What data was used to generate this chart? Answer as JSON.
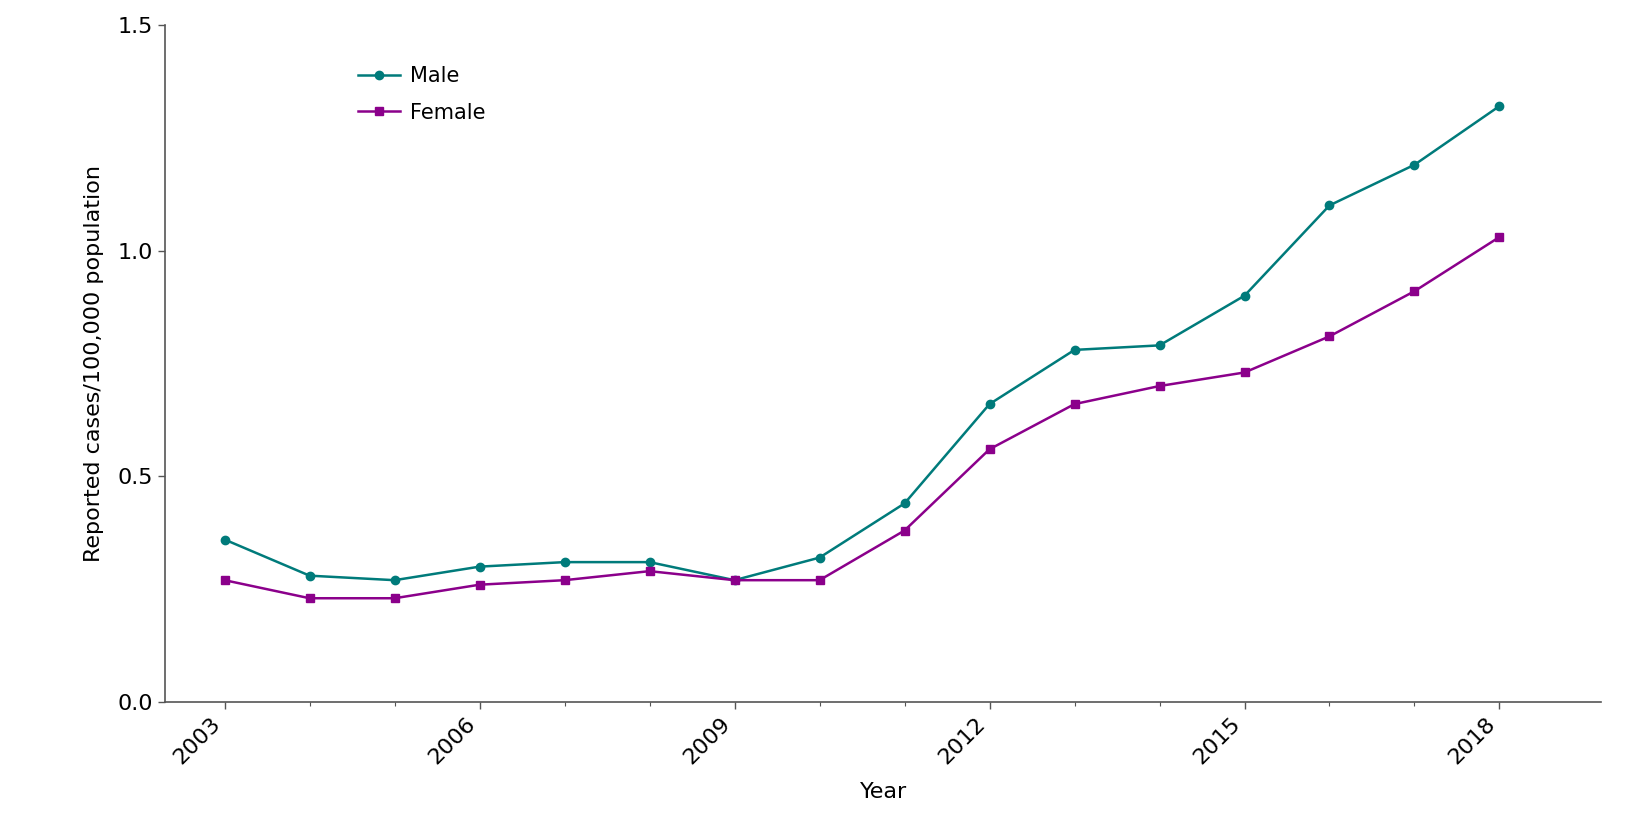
{
  "years": [
    2003,
    2004,
    2005,
    2006,
    2007,
    2008,
    2009,
    2010,
    2011,
    2012,
    2013,
    2014,
    2015,
    2016,
    2017,
    2018
  ],
  "male": [
    0.36,
    0.28,
    0.27,
    0.3,
    0.31,
    0.31,
    0.27,
    0.32,
    0.44,
    0.66,
    0.78,
    0.79,
    0.9,
    1.1,
    1.19,
    1.32
  ],
  "female": [
    0.27,
    0.23,
    0.23,
    0.26,
    0.27,
    0.29,
    0.27,
    0.27,
    0.38,
    0.56,
    0.66,
    0.7,
    0.73,
    0.81,
    0.91,
    1.03
  ],
  "male_color": "#007b7b",
  "female_color": "#8b008b",
  "male_label": "Male",
  "female_label": "Female",
  "xlabel": "Year",
  "ylabel": "Reported cases/100,000 population",
  "ylim": [
    0,
    1.5
  ],
  "yticks": [
    0.0,
    0.5,
    1.0,
    1.5
  ],
  "xtick_labels": [
    "2003",
    "2006",
    "2009",
    "2012",
    "2015",
    "2018"
  ],
  "xtick_positions": [
    2003,
    2006,
    2009,
    2012,
    2015,
    2018
  ],
  "background_color": "#ffffff",
  "line_width": 1.8,
  "marker_size": 6,
  "male_marker": "o",
  "female_marker": "s",
  "spine_color": "#555555",
  "tick_label_fontsize": 16,
  "axis_label_fontsize": 16,
  "legend_fontsize": 15
}
